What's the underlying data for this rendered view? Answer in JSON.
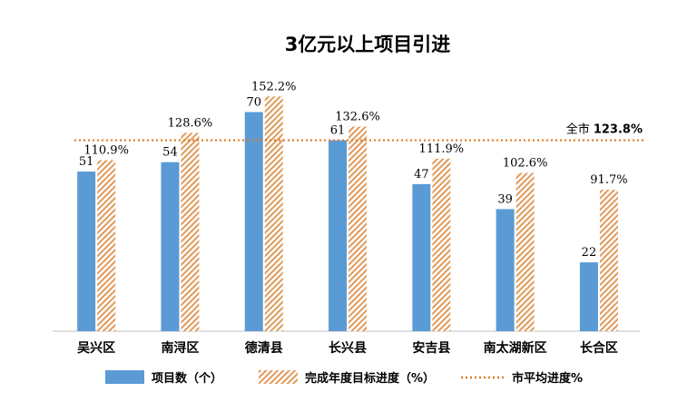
{
  "chart_data": {
    "type": "bar",
    "title": "3亿元以上项目引进",
    "categories": [
      "吴兴区",
      "南浔区",
      "德清县",
      "长兴县",
      "安吉县",
      "南太湖新区",
      "长合区"
    ],
    "series": [
      {
        "name": "项目数（个）",
        "values": [
          51,
          54,
          70,
          61,
          47,
          39,
          22
        ],
        "labels": [
          "51",
          "54",
          "70",
          "61",
          "47",
          "39",
          "22"
        ],
        "color": "#5b9bd5"
      },
      {
        "name": "完成年度目标进度（%）",
        "values": [
          110.9,
          128.6,
          152.2,
          132.6,
          111.9,
          102.6,
          91.7
        ],
        "labels": [
          "110.9%",
          "128.6%",
          "152.2%",
          "132.6%",
          "111.9%",
          "102.6%",
          "91.7%"
        ],
        "color": "#e09a5a"
      }
    ],
    "average": {
      "name": "市平均进度%",
      "value": 123.8,
      "label_prefix": "全市",
      "label_value": "123.8%",
      "color": "#e07b22"
    },
    "grid": false,
    "legend_position": "bottom"
  }
}
